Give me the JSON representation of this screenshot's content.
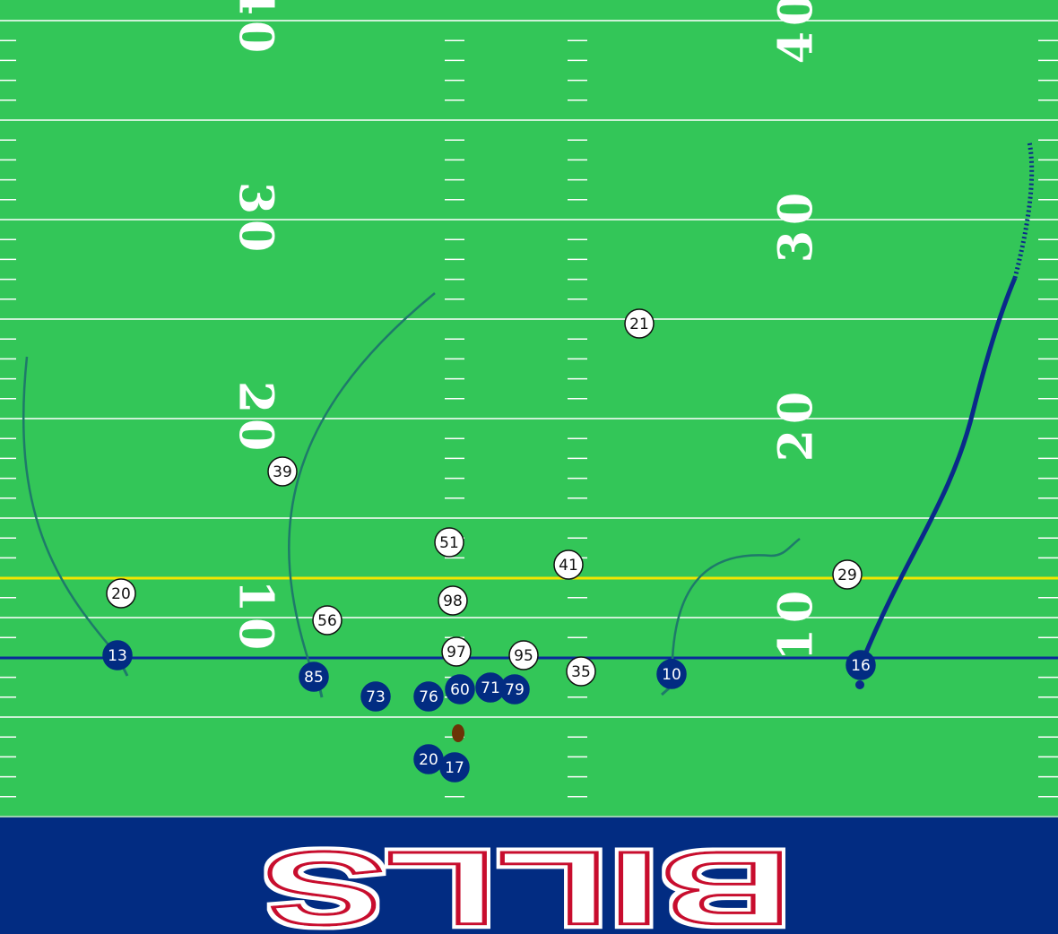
{
  "field": {
    "colors": {
      "grass": "#33c658",
      "lines": "#ffffff",
      "line_of_scrimmage": "#0a2a9a",
      "first_down": "#f2e600",
      "endzone": "#022c82",
      "offense": "#022c82",
      "defense": "#ffffff",
      "route": "#1e7a6a",
      "primary_route": "#0a2a8a",
      "ball": "#6b3306",
      "logo_outline": "#c8102e"
    },
    "yard_numbers": [
      "40",
      "30",
      "20",
      "10"
    ],
    "line_of_scrimmage_yard": 8,
    "first_down_yard": 12
  },
  "endzone": {
    "text": "BILLS"
  },
  "offense": [
    {
      "number": "13"
    },
    {
      "number": "85"
    },
    {
      "number": "73"
    },
    {
      "number": "76"
    },
    {
      "number": "60"
    },
    {
      "number": "71"
    },
    {
      "number": "79"
    },
    {
      "number": "10"
    },
    {
      "number": "16"
    },
    {
      "number": "20"
    },
    {
      "number": "17"
    }
  ],
  "defense": [
    {
      "number": "21"
    },
    {
      "number": "39"
    },
    {
      "number": "51"
    },
    {
      "number": "41"
    },
    {
      "number": "20"
    },
    {
      "number": "56"
    },
    {
      "number": "98"
    },
    {
      "number": "29"
    },
    {
      "number": "97"
    },
    {
      "number": "95"
    },
    {
      "number": "35"
    }
  ]
}
